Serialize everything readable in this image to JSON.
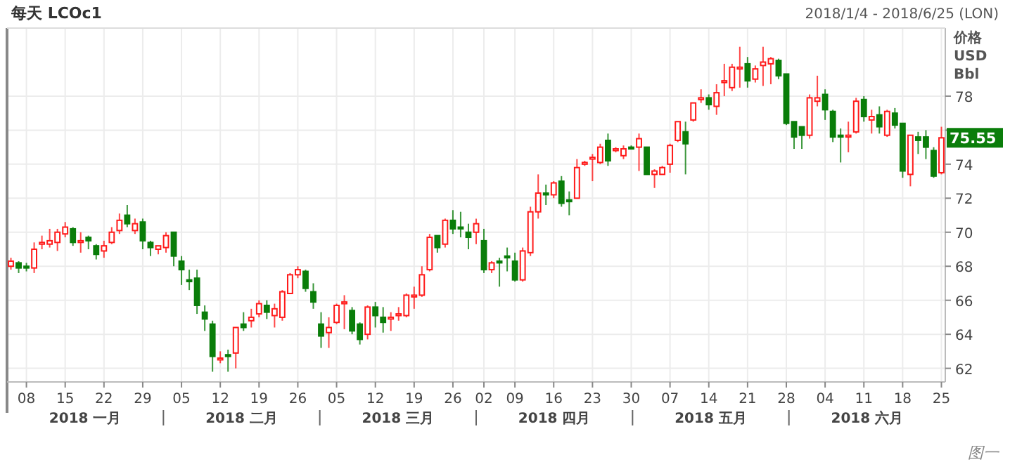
{
  "chart_data": {
    "type": "candlestick",
    "title": "每天 LCOc1",
    "subtitle": "2018/1/4 - 2018/6/25 (LON)",
    "ylabel": "价格 USD Bbl",
    "categories": [
      null,
      null,
      "08",
      null,
      null,
      null,
      null,
      "15",
      null,
      null,
      null,
      null,
      "22",
      null,
      null,
      null,
      null,
      "29",
      null,
      null,
      null,
      null,
      "05",
      null,
      null,
      null,
      null,
      "12",
      null,
      null,
      null,
      null,
      "19",
      null,
      null,
      null,
      null,
      "26",
      null,
      null,
      null,
      null,
      "05",
      null,
      null,
      null,
      null,
      "12",
      null,
      null,
      null,
      null,
      "19",
      null,
      null,
      null,
      null,
      "26",
      null,
      null,
      null,
      "02",
      null,
      null,
      null,
      "09",
      null,
      null,
      null,
      null,
      "16",
      null,
      null,
      null,
      null,
      "23",
      null,
      null,
      null,
      null,
      "30",
      null,
      null,
      null,
      null,
      "07",
      null,
      null,
      null,
      null,
      "14",
      null,
      null,
      null,
      null,
      "21",
      null,
      null,
      null,
      null,
      "28",
      null,
      null,
      null,
      null,
      "04",
      null,
      null,
      null,
      null,
      "11",
      null,
      null,
      null,
      null,
      "18",
      null,
      null,
      null,
      null,
      "25"
    ],
    "ohlc": [
      [
        68.0,
        68.5,
        67.8,
        68.3
      ],
      [
        68.2,
        68.3,
        67.6,
        67.9
      ],
      [
        68.0,
        68.2,
        67.7,
        67.9
      ],
      [
        67.9,
        69.4,
        67.6,
        69.0
      ],
      [
        69.3,
        69.8,
        69.0,
        69.4
      ],
      [
        69.3,
        70.2,
        69.1,
        69.5
      ],
      [
        69.4,
        70.2,
        68.9,
        70.0
      ],
      [
        69.9,
        70.6,
        69.7,
        70.3
      ],
      [
        70.2,
        70.3,
        69.2,
        69.4
      ],
      [
        69.4,
        70.0,
        68.8,
        69.5
      ],
      [
        69.7,
        69.8,
        69.0,
        69.5
      ],
      [
        69.2,
        69.3,
        68.4,
        68.7
      ],
      [
        68.9,
        69.5,
        68.5,
        69.2
      ],
      [
        69.4,
        70.3,
        69.3,
        70.0
      ],
      [
        70.1,
        71.1,
        69.9,
        70.7
      ],
      [
        71.0,
        71.6,
        70.3,
        70.5
      ],
      [
        70.1,
        70.8,
        69.9,
        70.5
      ],
      [
        70.6,
        70.8,
        69.0,
        69.5
      ],
      [
        69.4,
        69.5,
        68.6,
        69.1
      ],
      [
        69.0,
        69.2,
        68.7,
        69.2
      ],
      [
        69.1,
        70.0,
        68.8,
        69.8
      ],
      [
        70.0,
        70.0,
        68.0,
        68.6
      ],
      [
        68.3,
        68.6,
        66.9,
        67.8
      ],
      [
        67.2,
        67.8,
        66.6,
        67.1
      ],
      [
        67.3,
        67.8,
        65.2,
        65.7
      ],
      [
        65.3,
        65.7,
        64.2,
        64.9
      ],
      [
        64.6,
        64.8,
        61.8,
        62.7
      ],
      [
        62.5,
        63.0,
        62.3,
        62.6
      ],
      [
        62.8,
        63.1,
        61.8,
        62.7
      ],
      [
        62.9,
        64.4,
        62.0,
        64.4
      ],
      [
        64.6,
        65.3,
        64.2,
        64.4
      ],
      [
        64.8,
        65.5,
        64.4,
        65.0
      ],
      [
        65.2,
        66.0,
        65.0,
        65.8
      ],
      [
        65.7,
        66.0,
        64.9,
        65.3
      ],
      [
        65.1,
        65.8,
        64.4,
        65.5
      ],
      [
        65.0,
        66.6,
        64.8,
        66.5
      ],
      [
        66.4,
        67.6,
        66.4,
        67.5
      ],
      [
        67.5,
        68.0,
        67.3,
        67.8
      ],
      [
        67.7,
        67.8,
        66.5,
        66.7
      ],
      [
        66.5,
        67.0,
        65.5,
        65.9
      ],
      [
        64.6,
        65.3,
        63.2,
        63.9
      ],
      [
        64.1,
        65.0,
        63.2,
        64.4
      ],
      [
        64.7,
        65.8,
        64.6,
        65.7
      ],
      [
        65.8,
        66.3,
        64.3,
        65.9
      ],
      [
        65.4,
        65.6,
        64.0,
        64.2
      ],
      [
        64.6,
        64.7,
        63.4,
        63.7
      ],
      [
        64.0,
        65.7,
        63.7,
        65.6
      ],
      [
        65.6,
        65.9,
        64.4,
        65.1
      ],
      [
        65.0,
        65.6,
        64.1,
        64.7
      ],
      [
        64.9,
        65.3,
        64.2,
        65.0
      ],
      [
        65.1,
        65.6,
        64.8,
        65.2
      ],
      [
        65.1,
        66.4,
        65.0,
        66.3
      ],
      [
        66.2,
        66.8,
        65.5,
        66.3
      ],
      [
        66.3,
        68.0,
        66.2,
        67.5
      ],
      [
        67.8,
        69.9,
        67.7,
        69.7
      ],
      [
        69.8,
        69.8,
        68.8,
        69.1
      ],
      [
        69.3,
        70.8,
        69.1,
        70.7
      ],
      [
        70.7,
        71.3,
        69.9,
        70.2
      ],
      [
        70.3,
        71.2,
        69.7,
        70.2
      ],
      [
        70.0,
        70.5,
        69.0,
        69.7
      ],
      [
        70.0,
        70.8,
        69.3,
        70.5
      ],
      [
        69.5,
        70.2,
        67.6,
        67.8
      ],
      [
        67.8,
        68.3,
        67.6,
        68.2
      ],
      [
        68.3,
        68.5,
        66.8,
        68.2
      ],
      [
        68.6,
        69.1,
        67.7,
        68.5
      ],
      [
        68.3,
        68.8,
        67.1,
        67.2
      ],
      [
        67.2,
        69.1,
        67.1,
        68.9
      ],
      [
        68.8,
        71.5,
        68.6,
        71.2
      ],
      [
        71.2,
        73.4,
        70.8,
        72.3
      ],
      [
        72.3,
        72.8,
        71.6,
        72.2
      ],
      [
        72.2,
        73.0,
        72.0,
        72.9
      ],
      [
        73.0,
        73.3,
        71.5,
        71.7
      ],
      [
        71.9,
        72.4,
        71.0,
        71.8
      ],
      [
        72.0,
        74.3,
        72.0,
        73.8
      ],
      [
        74.0,
        74.2,
        73.9,
        74.1
      ],
      [
        74.3,
        74.6,
        73.0,
        74.4
      ],
      [
        74.1,
        75.2,
        74.0,
        75.0
      ],
      [
        75.4,
        75.8,
        73.9,
        74.2
      ],
      [
        74.8,
        75.0,
        74.7,
        74.9
      ],
      [
        74.5,
        75.1,
        74.3,
        74.9
      ],
      [
        75.0,
        75.1,
        74.9,
        74.9
      ],
      [
        75.0,
        75.8,
        73.6,
        75.5
      ],
      [
        75.0,
        75.0,
        73.4,
        73.4
      ],
      [
        73.4,
        73.7,
        72.6,
        73.6
      ],
      [
        73.4,
        73.9,
        73.4,
        73.8
      ],
      [
        74.0,
        75.2,
        73.5,
        75.1
      ],
      [
        75.4,
        76.5,
        75.3,
        76.5
      ],
      [
        75.9,
        76.5,
        73.4,
        75.2
      ],
      [
        76.6,
        77.6,
        76.5,
        77.6
      ],
      [
        77.8,
        78.4,
        77.6,
        77.9
      ],
      [
        77.9,
        78.1,
        77.2,
        77.5
      ],
      [
        77.4,
        78.7,
        76.9,
        78.2
      ],
      [
        78.8,
        79.9,
        78.0,
        78.9
      ],
      [
        78.5,
        79.9,
        78.3,
        79.7
      ],
      [
        79.6,
        80.9,
        78.5,
        79.7
      ],
      [
        79.9,
        80.3,
        78.5,
        78.9
      ],
      [
        79.0,
        79.8,
        78.8,
        79.6
      ],
      [
        79.8,
        80.9,
        78.6,
        80.0
      ],
      [
        79.9,
        80.3,
        78.7,
        80.2
      ],
      [
        80.1,
        80.2,
        79.0,
        79.2
      ],
      [
        79.3,
        79.3,
        76.3,
        76.4
      ],
      [
        76.5,
        76.5,
        74.9,
        75.6
      ],
      [
        76.2,
        76.2,
        74.9,
        75.7
      ],
      [
        75.7,
        78.1,
        75.5,
        77.9
      ],
      [
        77.7,
        79.2,
        77.4,
        77.9
      ],
      [
        78.1,
        78.4,
        76.6,
        77.2
      ],
      [
        77.1,
        77.2,
        75.3,
        75.6
      ],
      [
        75.7,
        76.1,
        74.1,
        75.6
      ],
      [
        75.6,
        76.5,
        74.7,
        75.7
      ],
      [
        75.9,
        77.9,
        75.8,
        77.7
      ],
      [
        77.8,
        78.0,
        76.5,
        76.8
      ],
      [
        76.6,
        77.2,
        75.8,
        76.8
      ],
      [
        76.9,
        77.4,
        75.8,
        76.2
      ],
      [
        75.7,
        77.2,
        75.6,
        77.1
      ],
      [
        77.0,
        77.3,
        76.1,
        76.3
      ],
      [
        76.4,
        76.4,
        73.2,
        73.6
      ],
      [
        73.4,
        75.7,
        72.7,
        75.7
      ],
      [
        75.6,
        75.9,
        74.6,
        75.4
      ],
      [
        75.6,
        76.0,
        74.3,
        75.0
      ],
      [
        74.8,
        75.0,
        73.2,
        73.3
      ],
      [
        73.5,
        76.2,
        73.4,
        75.55
      ]
    ],
    "ylim": [
      61.2,
      82
    ],
    "yticks": [
      62,
      64,
      66,
      68,
      70,
      72,
      74,
      {
        "value": 76,
        "label": null
      },
      78
    ],
    "grid": true,
    "annotations": [
      "2018 一月",
      "2018 二月",
      "2018 三月",
      "2018 四月",
      "2018 五月",
      "2018 六月",
      "图一",
      {
        "text": "75.55",
        "x": "25",
        "y": 75.55
      }
    ]
  }
}
